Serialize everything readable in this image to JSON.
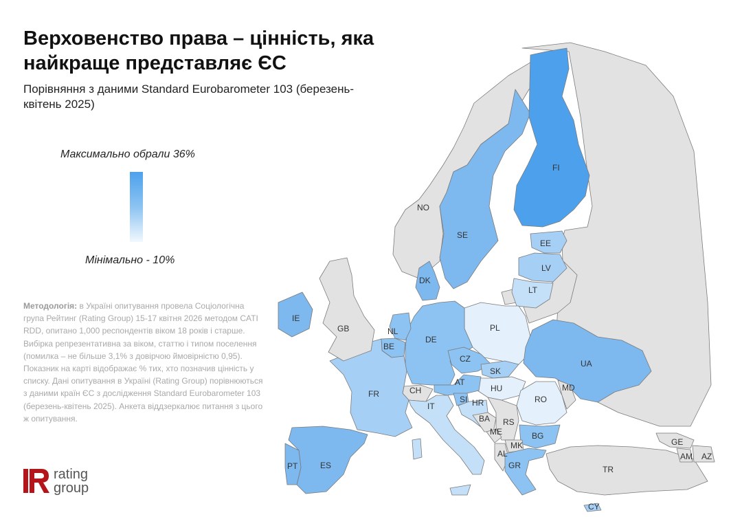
{
  "title": "Верховенство права – цінність, яка найкраще представляє ЄС",
  "subtitle": "Порівняння з даними Standard Eurobarometer 103 (березень-квітень 2025)",
  "legend": {
    "max_label": "Максимально обрали 36%",
    "min_label": "Мінімально - 10%",
    "max_value": 36,
    "min_value": 10,
    "color_max": "#4da1ec",
    "color_min": "#f2f8fe"
  },
  "methodology": {
    "label": "Методологія:",
    "text": "в Україні опитування провела Соціологічна група Рейтинг (Rating Group) 15-17 квітня 2026 методом CATI RDD, опитано 1,000 респондентів віком 18 років і старше. Вибірка репрезентативна за віком, статтю і типом поселення (помилка – не більше 3,1% з довірчою ймовірністю 0,95). Показник на карті відображає % тих, хто позначив цінність у списку. Дані опитування в Україні (Rating Group) порівнюються з даними країн ЄС з дослідження Standard Eurobarometer 103 (березень-квітень 2025). Анкета віддзеркалює питання з цього ж опитування."
  },
  "logo": {
    "line1": "rating",
    "line2": "group",
    "color": "#b3151b"
  },
  "map": {
    "colors": {
      "no_data": "#e2e2e2",
      "shade_1": "#4da1ec",
      "shade_2": "#7db8ef",
      "shade_3": "#8cc3f2",
      "shade_4": "#a6cff5",
      "shade_5": "#c4e0f8",
      "shade_6": "#e4f0fb"
    },
    "countries": [
      {
        "code": "NO",
        "label": "NO"
      },
      {
        "code": "SE",
        "label": "SE"
      },
      {
        "code": "FI",
        "label": "FI"
      },
      {
        "code": "EE",
        "label": "EE"
      },
      {
        "code": "LV",
        "label": "LV"
      },
      {
        "code": "LT",
        "label": "LT"
      },
      {
        "code": "DK",
        "label": "DK"
      },
      {
        "code": "IE",
        "label": "IE"
      },
      {
        "code": "GB",
        "label": "GB"
      },
      {
        "code": "NL",
        "label": "NL"
      },
      {
        "code": "BE",
        "label": "BE"
      },
      {
        "code": "DE",
        "label": "DE"
      },
      {
        "code": "PL",
        "label": "PL"
      },
      {
        "code": "CZ",
        "label": "CZ"
      },
      {
        "code": "SK",
        "label": "SK"
      },
      {
        "code": "UA",
        "label": "UA"
      },
      {
        "code": "FR",
        "label": "FR"
      },
      {
        "code": "CH",
        "label": "CH"
      },
      {
        "code": "AT",
        "label": "AT"
      },
      {
        "code": "HU",
        "label": "HU"
      },
      {
        "code": "MD",
        "label": "MD"
      },
      {
        "code": "RO",
        "label": "RO"
      },
      {
        "code": "SI",
        "label": "SI"
      },
      {
        "code": "HR",
        "label": "HR"
      },
      {
        "code": "IT",
        "label": "IT"
      },
      {
        "code": "BA",
        "label": "BA"
      },
      {
        "code": "RS",
        "label": "RS"
      },
      {
        "code": "ME",
        "label": "ME"
      },
      {
        "code": "BG",
        "label": "BG"
      },
      {
        "code": "MK",
        "label": "MK"
      },
      {
        "code": "AL",
        "label": "AL"
      },
      {
        "code": "GR",
        "label": "GR"
      },
      {
        "code": "PT",
        "label": "PT"
      },
      {
        "code": "ES",
        "label": "ES"
      },
      {
        "code": "TR",
        "label": "TR"
      },
      {
        "code": "GE",
        "label": "GE"
      },
      {
        "code": "AM",
        "label": "AM"
      },
      {
        "code": "AZ",
        "label": "AZ"
      },
      {
        "code": "CY",
        "label": "CY"
      }
    ]
  }
}
